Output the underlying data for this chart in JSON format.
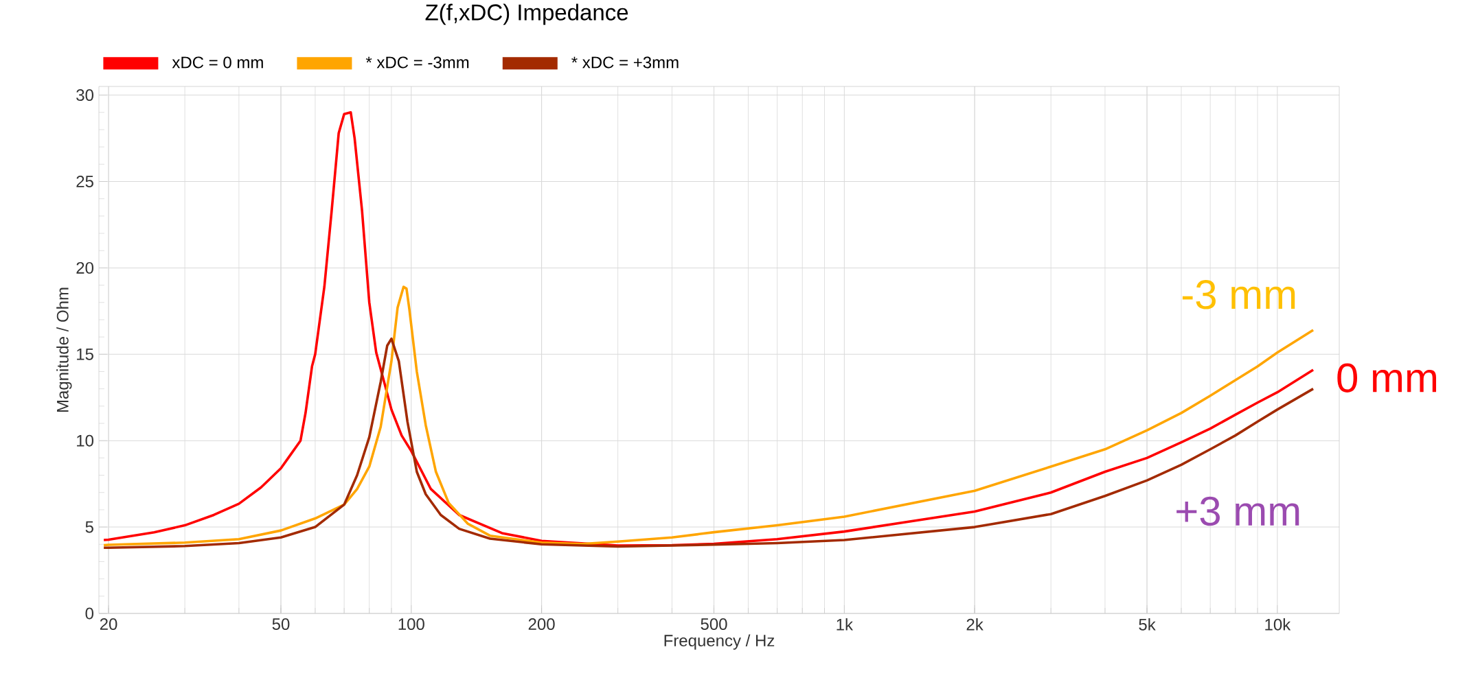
{
  "chart_data": {
    "type": "line",
    "title": "Z(f,xDC) Impedance",
    "xlabel": "Frequency / Hz",
    "ylabel": "Magnitude / Ohm",
    "log": "x",
    "grid": true,
    "legend": "top left",
    "line_style": "solid",
    "xlim": [
      19,
      13900
    ],
    "ylim": [
      0,
      30.5
    ],
    "xticks": [
      20,
      50,
      100,
      200,
      500,
      {
        "value": 1000,
        "label": "1k"
      },
      {
        "value": 2000,
        "label": "2k"
      },
      {
        "value": 5000,
        "label": "5k"
      },
      {
        "value": 10000,
        "label": "10k"
      }
    ],
    "yticks": [
      0,
      5,
      10,
      15,
      20,
      25,
      30
    ],
    "series": [
      {
        "name": "xDC = 0 mm",
        "color": "#ff0000",
        "x": [
          19.5,
          20,
          25.5,
          30,
          35,
          40,
          45,
          50,
          52,
          55.5,
          57,
          59,
          60,
          63,
          65.5,
          68,
          70,
          72.5,
          74,
          77,
          80,
          83,
          87,
          90,
          95,
          100,
          111,
          129,
          162,
          200,
          300,
          400,
          500,
          700,
          1000,
          2000,
          3000,
          4000,
          5000,
          6000,
          7000,
          8000,
          9000,
          10000,
          12100
        ],
        "values": [
          4.25,
          4.27,
          4.7,
          5.1,
          5.7,
          6.35,
          7.3,
          8.4,
          9.0,
          10.0,
          11.6,
          14.3,
          15.0,
          18.9,
          23.3,
          27.8,
          28.9,
          29.0,
          27.5,
          23.3,
          18.0,
          15.1,
          13.2,
          11.8,
          10.3,
          9.4,
          7.2,
          5.7,
          4.65,
          4.2,
          3.93,
          3.95,
          4.03,
          4.3,
          4.74,
          5.9,
          7.0,
          8.2,
          9.0,
          9.9,
          10.7,
          11.5,
          12.2,
          12.8,
          14.1
        ]
      },
      {
        "name": "* xDC = -3mm",
        "color": "#ffa500",
        "x": [
          19.5,
          20,
          30,
          40,
          50,
          60,
          70,
          75,
          80,
          85,
          90,
          93,
          96,
          97.5,
          99,
          103,
          108,
          114,
          122,
          135,
          152,
          200,
          248,
          300,
          400,
          500,
          700,
          1000,
          2000,
          3000,
          4000,
          5000,
          6000,
          7000,
          8000,
          9000,
          10000,
          12100
        ],
        "values": [
          3.95,
          3.97,
          4.1,
          4.3,
          4.8,
          5.5,
          6.3,
          7.2,
          8.5,
          10.8,
          14.6,
          17.7,
          18.9,
          18.8,
          17.6,
          14.0,
          10.9,
          8.2,
          6.4,
          5.2,
          4.5,
          4.1,
          4.02,
          4.16,
          4.4,
          4.7,
          5.1,
          5.6,
          7.1,
          8.5,
          9.5,
          10.6,
          11.6,
          12.6,
          13.5,
          14.3,
          15.1,
          16.4
        ]
      },
      {
        "name": "* xDC = +3mm",
        "color": "#a32a00",
        "x": [
          19.5,
          20,
          30,
          40,
          50,
          60,
          70,
          75,
          80,
          85,
          88,
          90,
          93.6,
          98,
          103,
          108,
          117,
          129,
          152,
          200,
          300,
          500,
          700,
          1000,
          2000,
          3000,
          4000,
          5000,
          6000,
          7000,
          8000,
          9000,
          10000,
          12100
        ],
        "values": [
          3.8,
          3.8,
          3.9,
          4.07,
          4.4,
          5.0,
          6.3,
          8.0,
          10.2,
          13.4,
          15.5,
          15.9,
          14.6,
          11.1,
          8.2,
          6.9,
          5.7,
          4.9,
          4.33,
          4.0,
          3.87,
          3.98,
          4.07,
          4.25,
          5.0,
          5.75,
          6.8,
          7.7,
          8.6,
          9.5,
          10.3,
          11.1,
          11.8,
          13.0
        ]
      }
    ],
    "annotations": [
      "-3 mm",
      "0 mm",
      "+3 mm"
    ]
  }
}
